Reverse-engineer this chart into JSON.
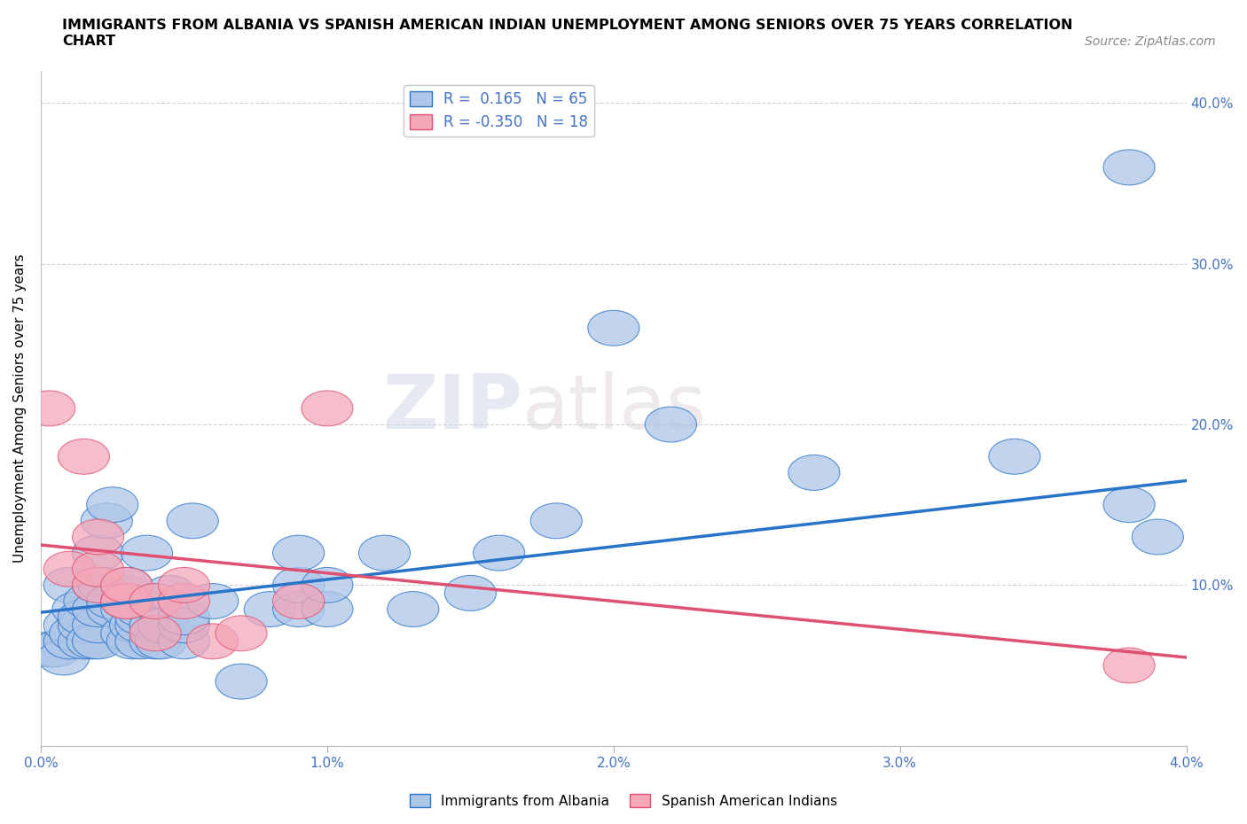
{
  "title_line1": "IMMIGRANTS FROM ALBANIA VS SPANISH AMERICAN INDIAN UNEMPLOYMENT AMONG SENIORS OVER 75 YEARS CORRELATION",
  "title_line2": "CHART",
  "source": "Source: ZipAtlas.com",
  "ylabel": "Unemployment Among Seniors over 75 years",
  "xlim": [
    0.0,
    0.04
  ],
  "ylim": [
    0.0,
    0.42
  ],
  "xticks": [
    0.0,
    0.01,
    0.02,
    0.03,
    0.04
  ],
  "xtick_labels": [
    "0.0%",
    "1.0%",
    "2.0%",
    "3.0%",
    "4.0%"
  ],
  "yticks": [
    0.0,
    0.1,
    0.2,
    0.3,
    0.4
  ],
  "ytick_labels": [
    "",
    "10.0%",
    "20.0%",
    "30.0%",
    "40.0%"
  ],
  "blue_R": "0.165",
  "blue_N": "65",
  "pink_R": "-0.350",
  "pink_N": "18",
  "blue_color": "#aec6e8",
  "pink_color": "#f4a7b9",
  "blue_line_color": "#2874c8",
  "pink_line_color": "#e05070",
  "watermark_zip": "ZIP",
  "watermark_atlas": "atlas",
  "blue_x": [
    0.0003,
    0.0005,
    0.0008,
    0.001,
    0.001,
    0.001,
    0.0012,
    0.0013,
    0.0015,
    0.0015,
    0.0015,
    0.0017,
    0.0018,
    0.002,
    0.002,
    0.002,
    0.002,
    0.002,
    0.0022,
    0.0023,
    0.0025,
    0.0025,
    0.0025,
    0.003,
    0.003,
    0.003,
    0.003,
    0.003,
    0.0032,
    0.0033,
    0.0035,
    0.0035,
    0.0035,
    0.0035,
    0.0037,
    0.004,
    0.004,
    0.004,
    0.0042,
    0.0043,
    0.0045,
    0.005,
    0.005,
    0.005,
    0.0053,
    0.006,
    0.007,
    0.008,
    0.009,
    0.009,
    0.009,
    0.01,
    0.01,
    0.012,
    0.013,
    0.015,
    0.016,
    0.018,
    0.02,
    0.022,
    0.027,
    0.034,
    0.038,
    0.038,
    0.039
  ],
  "blue_y": [
    0.06,
    0.06,
    0.055,
    0.065,
    0.075,
    0.1,
    0.07,
    0.085,
    0.065,
    0.075,
    0.08,
    0.09,
    0.065,
    0.065,
    0.075,
    0.085,
    0.1,
    0.12,
    0.1,
    0.14,
    0.085,
    0.09,
    0.15,
    0.07,
    0.085,
    0.09,
    0.095,
    0.1,
    0.065,
    0.075,
    0.065,
    0.075,
    0.08,
    0.085,
    0.12,
    0.065,
    0.075,
    0.09,
    0.065,
    0.075,
    0.095,
    0.065,
    0.075,
    0.08,
    0.14,
    0.09,
    0.04,
    0.085,
    0.085,
    0.1,
    0.12,
    0.085,
    0.1,
    0.12,
    0.085,
    0.095,
    0.12,
    0.14,
    0.26,
    0.2,
    0.17,
    0.18,
    0.36,
    0.15,
    0.13
  ],
  "pink_x": [
    0.0003,
    0.001,
    0.0015,
    0.002,
    0.002,
    0.002,
    0.003,
    0.003,
    0.003,
    0.004,
    0.004,
    0.005,
    0.005,
    0.006,
    0.007,
    0.009,
    0.01,
    0.038
  ],
  "pink_y": [
    0.21,
    0.11,
    0.18,
    0.1,
    0.11,
    0.13,
    0.09,
    0.09,
    0.1,
    0.07,
    0.09,
    0.09,
    0.1,
    0.065,
    0.07,
    0.09,
    0.21,
    0.05
  ],
  "blue_trend_x": [
    0.0,
    0.04
  ],
  "blue_trend_y": [
    0.083,
    0.165
  ],
  "pink_trend_x": [
    0.0,
    0.04
  ],
  "pink_trend_y": [
    0.125,
    0.055
  ]
}
